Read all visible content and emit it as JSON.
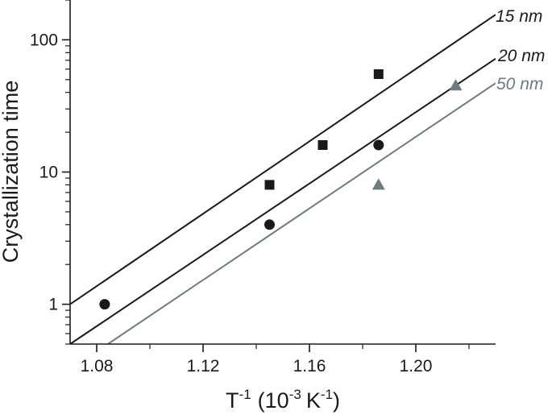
{
  "chart_data": {
    "type": "scatter",
    "title": "",
    "xlabel": "T",
    "xlabel_sup": "-1",
    "xlabel_unit_open": "(10",
    "xlabel_unit_sup1": "-3",
    "xlabel_unit_mid": "K",
    "xlabel_unit_sup2": "-1",
    "xlabel_unit_close": ")",
    "ylabel": "Crystallization time",
    "xlim": [
      1.07,
      1.23
    ],
    "ylim": [
      0.5,
      200
    ],
    "yscale": "log",
    "xticks": [
      1.08,
      1.12,
      1.16,
      1.2
    ],
    "xtick_labels": [
      "1.08",
      "1.12",
      "1.16",
      "1.20"
    ],
    "yticks": [
      1,
      10,
      100
    ],
    "ytick_labels": [
      "1",
      "10",
      "100"
    ],
    "grid": false,
    "legend": "none",
    "series": [
      {
        "name": "15 nm",
        "marker": "square",
        "color": "#1a1a1a",
        "points": [
          {
            "x": 1.145,
            "y": 8
          },
          {
            "x": 1.165,
            "y": 16
          },
          {
            "x": 1.186,
            "y": 55
          }
        ],
        "fit": [
          {
            "x": 1.07,
            "y": 1.0
          },
          {
            "x": 1.23,
            "y": 155
          }
        ]
      },
      {
        "name": "20 nm",
        "marker": "circle",
        "color": "#1a1a1a",
        "points": [
          {
            "x": 1.083,
            "y": 1
          },
          {
            "x": 1.145,
            "y": 4
          },
          {
            "x": 1.186,
            "y": 16
          }
        ],
        "fit": [
          {
            "x": 1.07,
            "y": 0.5
          },
          {
            "x": 1.23,
            "y": 72
          }
        ]
      },
      {
        "name": "50 nm",
        "marker": "triangle",
        "color": "#6e7b80",
        "points": [
          {
            "x": 1.186,
            "y": 8
          },
          {
            "x": 1.215,
            "y": 45
          }
        ],
        "fit": [
          {
            "x": 1.0842,
            "y": 0.5
          },
          {
            "x": 1.23,
            "y": 47
          }
        ]
      }
    ]
  }
}
